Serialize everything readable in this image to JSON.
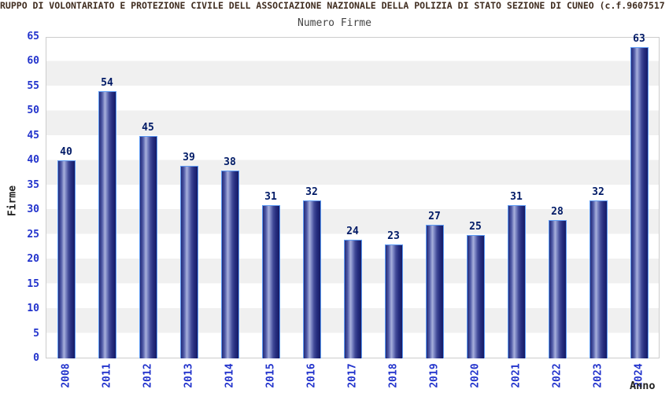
{
  "header": {
    "title": "RUPPO DI VOLONTARIATO E PROTEZIONE CIVILE DELL ASSOCIAZIONE NAZIONALE DELLA POLIZIA DI STATO SEZIONE DI CUNEO (c.f.9607517",
    "subtitle": "Numero Firme"
  },
  "chart_data": {
    "type": "bar",
    "title": "Numero Firme",
    "categories": [
      "2008",
      "2011",
      "2012",
      "2013",
      "2014",
      "2015",
      "2016",
      "2017",
      "2018",
      "2019",
      "2020",
      "2021",
      "2022",
      "2023",
      "2024"
    ],
    "values": [
      40,
      54,
      45,
      39,
      38,
      31,
      32,
      24,
      23,
      27,
      25,
      31,
      28,
      32,
      63
    ],
    "xlabel": "Anno",
    "ylabel": "Firme",
    "ylim": [
      0,
      65
    ],
    "ytick_step": 5,
    "grid": "alternating-horizontal-bands-every-5",
    "legend": "none",
    "colors": {
      "bar_dark": "#151b66",
      "bar_light": "#a8b0dc",
      "bar_border": "#5e9cf5",
      "tick_labels": "#2233cc",
      "value_labels": "#001a66",
      "band_gray": "#f0f0f0",
      "plot_border": "#cccccc",
      "title_text": "#402d20",
      "subtitle_text": "#444444"
    }
  }
}
